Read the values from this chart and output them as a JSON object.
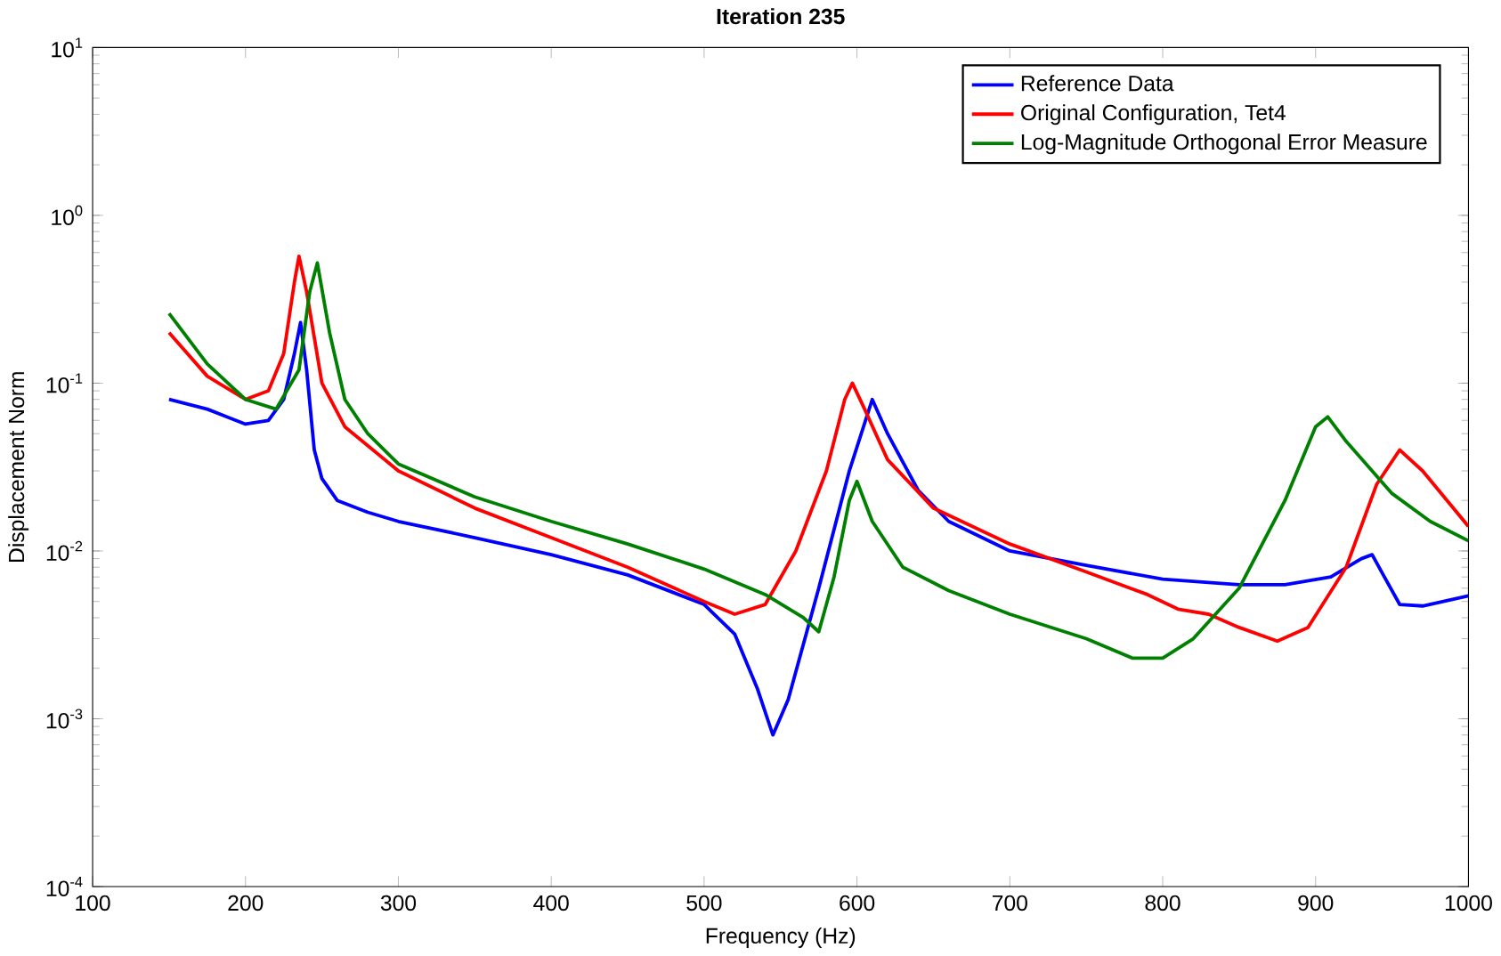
{
  "chart_data": {
    "type": "line",
    "title": "Iteration 235",
    "xlabel": "Frequency (Hz)",
    "ylabel": "Displacement Norm",
    "log": "y",
    "legend": "top right",
    "marker": "none",
    "line_style": "solid",
    "xlim": [
      100,
      1000
    ],
    "xticks": [
      100,
      200,
      300,
      400,
      500,
      600,
      700,
      800,
      900,
      1000
    ],
    "ylim": [
      0.0001,
      10
    ],
    "yticks": [
      {
        "value": 0.0001,
        "label": "10$^{-4}$"
      },
      {
        "value": 0.001,
        "label": "10$^{-3}$"
      },
      {
        "value": 0.01,
        "label": "10$^{-2}$"
      },
      {
        "value": 0.1,
        "label": "10$^{-1}$"
      },
      {
        "value": 1,
        "label": "10$^{0}$"
      },
      {
        "value": 10,
        "label": "10$^{1}$"
      }
    ],
    "series": [
      {
        "name": "Reference Data",
        "color": "#0000ff",
        "x": [
          150,
          175,
          200,
          215,
          225,
          232,
          236,
          240,
          245,
          250,
          260,
          280,
          300,
          350,
          400,
          450,
          500,
          520,
          535,
          545,
          555,
          575,
          595,
          610,
          620,
          640,
          660,
          700,
          750,
          800,
          850,
          880,
          910,
          930,
          937,
          945,
          955,
          970,
          1000
        ],
        "values": [
          0.08,
          0.07,
          0.057,
          0.06,
          0.08,
          0.15,
          0.23,
          0.12,
          0.04,
          0.027,
          0.02,
          0.017,
          0.015,
          0.012,
          0.0095,
          0.0072,
          0.0048,
          0.0032,
          0.0015,
          0.0008,
          0.0013,
          0.006,
          0.03,
          0.08,
          0.05,
          0.023,
          0.015,
          0.01,
          0.0082,
          0.0068,
          0.0063,
          0.0063,
          0.007,
          0.009,
          0.0095,
          0.007,
          0.0048,
          0.0047,
          0.0054
        ]
      },
      {
        "name": "Original Configuration, Tet4",
        "color": "#ff0000",
        "x": [
          150,
          175,
          200,
          215,
          225,
          232,
          235,
          240,
          250,
          265,
          300,
          350,
          400,
          450,
          500,
          520,
          540,
          560,
          580,
          592,
          597,
          605,
          620,
          650,
          700,
          750,
          790,
          810,
          830,
          850,
          875,
          895,
          920,
          940,
          955,
          970,
          1000
        ],
        "values": [
          0.2,
          0.11,
          0.08,
          0.09,
          0.15,
          0.4,
          0.57,
          0.35,
          0.1,
          0.055,
          0.03,
          0.018,
          0.012,
          0.008,
          0.005,
          0.0042,
          0.0048,
          0.01,
          0.03,
          0.08,
          0.1,
          0.07,
          0.035,
          0.018,
          0.011,
          0.0075,
          0.0055,
          0.0045,
          0.0042,
          0.0035,
          0.0029,
          0.0035,
          0.008,
          0.025,
          0.04,
          0.03,
          0.014
        ]
      },
      {
        "name": "Log-Magnitude Orthogonal Error Measure",
        "color": "#008000",
        "x": [
          150,
          175,
          200,
          220,
          235,
          242,
          247,
          255,
          265,
          280,
          300,
          350,
          400,
          450,
          500,
          540,
          565,
          575,
          585,
          595,
          600,
          610,
          630,
          660,
          700,
          750,
          780,
          800,
          820,
          850,
          880,
          900,
          908,
          920,
          950,
          975,
          1000
        ],
        "values": [
          0.26,
          0.13,
          0.08,
          0.07,
          0.12,
          0.35,
          0.52,
          0.2,
          0.08,
          0.05,
          0.033,
          0.021,
          0.015,
          0.011,
          0.0078,
          0.0055,
          0.004,
          0.0033,
          0.007,
          0.02,
          0.026,
          0.015,
          0.008,
          0.0058,
          0.0042,
          0.003,
          0.0023,
          0.0023,
          0.003,
          0.006,
          0.02,
          0.055,
          0.063,
          0.045,
          0.022,
          0.015,
          0.0115
        ]
      }
    ]
  }
}
